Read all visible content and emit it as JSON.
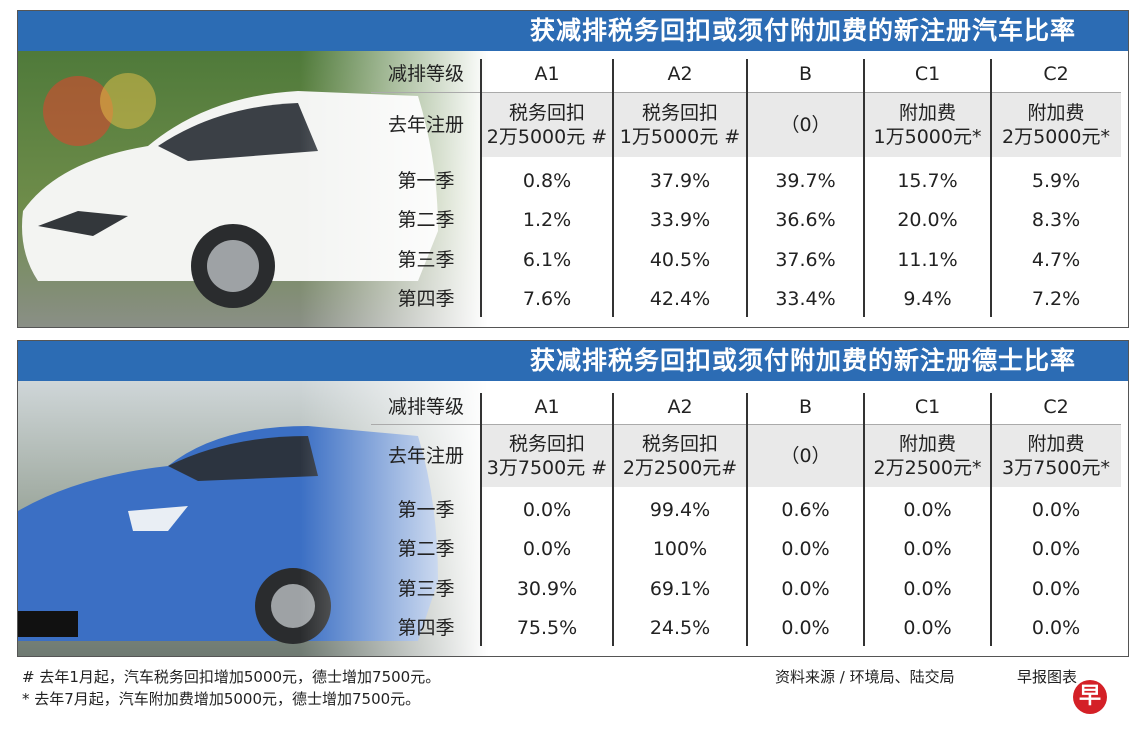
{
  "tables": [
    {
      "title": "获减排税务回扣或须付附加费的新注册汽车比率",
      "header": [
        "减排等级",
        "A1",
        "A2",
        "B",
        "C1",
        "C2"
      ],
      "subheader": [
        [
          "去年注册"
        ],
        [
          "税务回扣",
          "2万5000元 #"
        ],
        [
          "税务回扣",
          "1万5000元 #"
        ],
        [
          "（0）"
        ],
        [
          "附加费",
          "1万5000元*"
        ],
        [
          "附加费",
          "2万5000元*"
        ]
      ],
      "rows": [
        [
          "第一季",
          "0.8%",
          "37.9%",
          "39.7%",
          "15.7%",
          "5.9%"
        ],
        [
          "第二季",
          "1.2%",
          "33.9%",
          "36.6%",
          "20.0%",
          "8.3%"
        ],
        [
          "第三季",
          "6.1%",
          "40.5%",
          "37.6%",
          "11.1%",
          "4.7%"
        ],
        [
          "第四季",
          "7.6%",
          "42.4%",
          "33.4%",
          "9.4%",
          "7.2%"
        ]
      ]
    },
    {
      "title": "获减排税务回扣或须付附加费的新注册德士比率",
      "header": [
        "减排等级",
        "A1",
        "A2",
        "B",
        "C1",
        "C2"
      ],
      "subheader": [
        [
          "去年注册"
        ],
        [
          "税务回扣",
          "3万7500元 #"
        ],
        [
          "税务回扣",
          "2万2500元#"
        ],
        [
          "（0）"
        ],
        [
          "附加费",
          "2万2500元*"
        ],
        [
          "附加费",
          "3万7500元*"
        ]
      ],
      "rows": [
        [
          "第一季",
          "0.0%",
          "99.4%",
          "0.6%",
          "0.0%",
          "0.0%"
        ],
        [
          "第二季",
          "0.0%",
          "100%",
          "0.0%",
          "0.0%",
          "0.0%"
        ],
        [
          "第三季",
          "30.9%",
          "69.1%",
          "0.0%",
          "0.0%",
          "0.0%"
        ],
        [
          "第四季",
          "75.5%",
          "24.5%",
          "0.0%",
          "0.0%",
          "0.0%"
        ]
      ]
    }
  ],
  "footer": {
    "notes": [
      "# 去年1月起，汽车税务回扣增加5000元，德士增加7500元。",
      "* 去年7月起，汽车附加费增加5000元，德士增加7500元。"
    ],
    "source": "资料来源 / 环境局、陆交局",
    "credit": "早报图表",
    "logo": "早"
  }
}
